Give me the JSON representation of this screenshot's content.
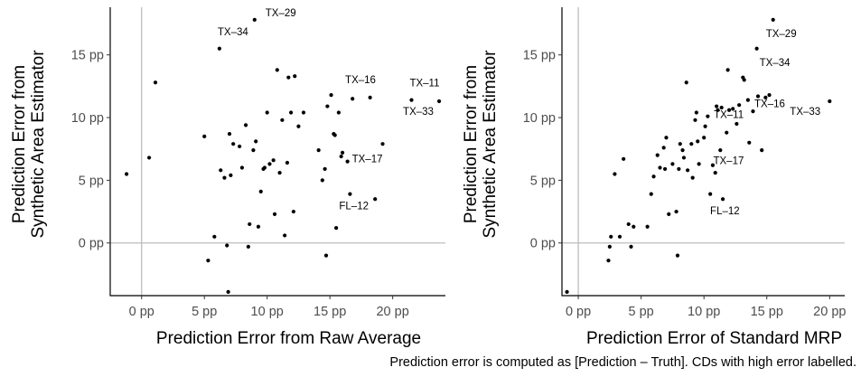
{
  "caption": "Prediction error is computed as [Prediction – Truth]. CDs with high error labelled.",
  "chart_data": [
    {
      "type": "scatter",
      "xlabel": "Prediction Error from Raw Average",
      "ylabel_lines": [
        "Prediction Error from",
        "Synthetic Area Estimator"
      ],
      "xlim": [
        -2.5,
        24.2
      ],
      "ylim": [
        -4.2,
        18.8
      ],
      "xticks": [
        0,
        5,
        10,
        15,
        20
      ],
      "yticks": [
        0,
        5,
        10,
        15
      ],
      "xtick_labels": [
        "0 pp",
        "5 pp",
        "10 pp",
        "15 pp",
        "20 pp"
      ],
      "ytick_labels": [
        "0 pp",
        "5 pp",
        "10 pp",
        "15 pp"
      ],
      "reference_lines": {
        "x": 0,
        "y": 0
      },
      "points": [
        [
          -1.2,
          5.5
        ],
        [
          0.6,
          6.8
        ],
        [
          1.1,
          12.8
        ],
        [
          5.0,
          8.5
        ],
        [
          5.3,
          -1.4
        ],
        [
          5.8,
          0.5
        ],
        [
          6.2,
          15.5
        ],
        [
          6.3,
          5.8
        ],
        [
          6.6,
          5.2
        ],
        [
          6.8,
          -0.2
        ],
        [
          6.9,
          -3.9
        ],
        [
          7.0,
          8.7
        ],
        [
          7.1,
          5.4
        ],
        [
          7.3,
          7.9
        ],
        [
          7.8,
          7.7
        ],
        [
          8.0,
          6.0
        ],
        [
          8.3,
          9.4
        ],
        [
          8.5,
          -0.3
        ],
        [
          8.6,
          1.5
        ],
        [
          8.9,
          7.4
        ],
        [
          9.0,
          17.8
        ],
        [
          9.1,
          8.1
        ],
        [
          9.3,
          1.3
        ],
        [
          9.5,
          4.1
        ],
        [
          9.7,
          5.9
        ],
        [
          9.8,
          6.0
        ],
        [
          10.0,
          10.4
        ],
        [
          10.2,
          6.3
        ],
        [
          10.5,
          6.6
        ],
        [
          10.6,
          2.3
        ],
        [
          10.8,
          13.8
        ],
        [
          11.0,
          5.6
        ],
        [
          11.2,
          9.8
        ],
        [
          11.4,
          0.6
        ],
        [
          11.6,
          6.4
        ],
        [
          11.7,
          13.2
        ],
        [
          11.9,
          10.4
        ],
        [
          12.1,
          2.5
        ],
        [
          12.2,
          13.3
        ],
        [
          12.5,
          9.3
        ],
        [
          12.9,
          10.4
        ],
        [
          14.1,
          7.4
        ],
        [
          14.4,
          5.0
        ],
        [
          14.6,
          5.9
        ],
        [
          14.7,
          -1.0
        ],
        [
          14.8,
          10.9
        ],
        [
          15.1,
          11.8
        ],
        [
          15.3,
          8.7
        ],
        [
          15.4,
          8.6
        ],
        [
          15.5,
          1.2
        ],
        [
          15.7,
          10.4
        ],
        [
          15.9,
          6.9
        ],
        [
          16.0,
          7.2
        ],
        [
          16.4,
          6.5
        ],
        [
          16.6,
          3.9
        ],
        [
          16.8,
          11.5
        ],
        [
          18.2,
          11.6
        ],
        [
          18.6,
          3.5
        ],
        [
          19.2,
          7.9
        ],
        [
          21.5,
          11.4
        ],
        [
          23.7,
          11.3
        ]
      ],
      "labels": [
        {
          "text": "TX–29",
          "x": 9.0,
          "y": 17.8
        },
        {
          "text": "TX–34",
          "x": 6.2,
          "y": 15.5
        },
        {
          "text": "TX–16",
          "x": 16.0,
          "y": 11.8
        },
        {
          "text": "TX–11",
          "x": 21.5,
          "y": 11.4
        },
        {
          "text": "TX–33",
          "x": 23.7,
          "y": 11.3
        },
        {
          "text": "TX–17",
          "x": 16.4,
          "y": 6.5
        },
        {
          "text": "FL–12",
          "x": 16.6,
          "y": 3.9
        }
      ]
    },
    {
      "type": "scatter",
      "xlabel": "Prediction Error of Standard MRP",
      "ylabel_lines": [
        "Prediction Error from",
        "Synthetic Area Estimator"
      ],
      "xlim": [
        -1.3,
        21.2
      ],
      "ylim": [
        -4.2,
        18.8
      ],
      "xticks": [
        0,
        5,
        10,
        15,
        20
      ],
      "yticks": [
        0,
        5,
        10,
        15
      ],
      "xtick_labels": [
        "0 pp",
        "5 pp",
        "10 pp",
        "15 pp",
        "20 pp"
      ],
      "ytick_labels": [
        "0 pp",
        "5 pp",
        "10 pp",
        "15 pp"
      ],
      "reference_lines": {
        "x": 0,
        "y": 0
      },
      "points": [
        [
          -0.9,
          -3.9
        ],
        [
          2.4,
          -1.4
        ],
        [
          2.5,
          -0.3
        ],
        [
          2.6,
          0.5
        ],
        [
          2.9,
          5.5
        ],
        [
          3.3,
          0.5
        ],
        [
          3.6,
          6.7
        ],
        [
          4.0,
          1.5
        ],
        [
          4.2,
          -0.3
        ],
        [
          4.4,
          1.3
        ],
        [
          5.5,
          1.3
        ],
        [
          5.8,
          3.9
        ],
        [
          6.0,
          5.3
        ],
        [
          6.3,
          7.0
        ],
        [
          6.5,
          6.0
        ],
        [
          6.8,
          7.6
        ],
        [
          6.9,
          5.9
        ],
        [
          7.0,
          8.4
        ],
        [
          7.2,
          2.3
        ],
        [
          7.5,
          6.3
        ],
        [
          7.8,
          2.5
        ],
        [
          7.9,
          -1.0
        ],
        [
          8.0,
          5.9
        ],
        [
          8.1,
          7.9
        ],
        [
          8.3,
          7.4
        ],
        [
          8.4,
          6.8
        ],
        [
          8.6,
          12.8
        ],
        [
          8.7,
          5.8
        ],
        [
          9.0,
          7.9
        ],
        [
          9.1,
          5.2
        ],
        [
          9.3,
          9.8
        ],
        [
          9.4,
          10.4
        ],
        [
          9.5,
          8.1
        ],
        [
          9.6,
          6.3
        ],
        [
          10.0,
          8.4
        ],
        [
          10.1,
          9.3
        ],
        [
          10.3,
          10.1
        ],
        [
          10.5,
          3.9
        ],
        [
          10.7,
          6.2
        ],
        [
          10.9,
          5.6
        ],
        [
          11.0,
          10.9
        ],
        [
          11.1,
          10.6
        ],
        [
          11.3,
          7.4
        ],
        [
          11.4,
          10.8
        ],
        [
          11.5,
          3.5
        ],
        [
          11.8,
          8.8
        ],
        [
          11.9,
          13.8
        ],
        [
          12.0,
          10.6
        ],
        [
          12.3,
          10.7
        ],
        [
          12.6,
          9.5
        ],
        [
          12.8,
          11.0
        ],
        [
          13.1,
          13.2
        ],
        [
          13.2,
          13.0
        ],
        [
          13.5,
          11.4
        ],
        [
          13.6,
          8.0
        ],
        [
          13.9,
          10.5
        ],
        [
          14.2,
          15.5
        ],
        [
          14.3,
          11.7
        ],
        [
          14.6,
          7.4
        ],
        [
          14.9,
          11.6
        ],
        [
          15.2,
          11.8
        ],
        [
          15.5,
          17.8
        ],
        [
          20.0,
          11.3
        ]
      ],
      "labels": [
        {
          "text": "TX–29",
          "x": 15.5,
          "y": 17.8
        },
        {
          "text": "TX–34",
          "x": 14.2,
          "y": 15.5
        },
        {
          "text": "TX–16",
          "x": 14.3,
          "y": 11.7
        },
        {
          "text": "TX–11",
          "x": 11.0,
          "y": 10.9
        },
        {
          "text": "TX–33",
          "x": 20.0,
          "y": 11.3
        },
        {
          "text": "TX–17",
          "x": 11.1,
          "y": 7.3
        },
        {
          "text": "FL–12",
          "x": 11.5,
          "y": 3.5
        }
      ]
    }
  ]
}
